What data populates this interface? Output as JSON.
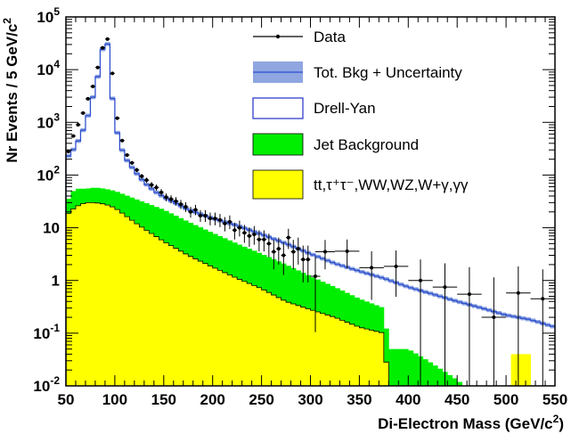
{
  "chart_data": {
    "type": "histogram",
    "xlabel": "Di-Electron Mass (GeV/c",
    "xlabel_sup": "2",
    "xlabel_close": ")",
    "ylabel": "Nr Events / 5 GeV/c",
    "ylabel_sup": "2",
    "xlim": [
      50,
      550
    ],
    "ylim": [
      0.01,
      100000
    ],
    "log_y": true,
    "bin_width": 5,
    "legend_position": "top-right",
    "x_ticks": [
      "50",
      "100",
      "150",
      "200",
      "250",
      "300",
      "350",
      "400",
      "450",
      "500",
      "550"
    ],
    "y_ticks": [
      {
        "base": "10",
        "exp": "-2"
      },
      {
        "base": "10",
        "exp": "-1"
      },
      {
        "base": "1",
        "exp": ""
      },
      {
        "base": "10",
        "exp": ""
      },
      {
        "base": "10",
        "exp": "2"
      },
      {
        "base": "10",
        "exp": "3"
      },
      {
        "base": "10",
        "exp": "4"
      },
      {
        "base": "10",
        "exp": "5"
      }
    ],
    "legend": [
      {
        "key": "data",
        "label": "Data"
      },
      {
        "key": "total",
        "label": "Tot. Bkg + Uncertainty"
      },
      {
        "key": "dy",
        "label": "Drell-Yan"
      },
      {
        "key": "jet",
        "label": "Jet Background"
      },
      {
        "key": "other",
        "label": "tt,τ⁺τ⁻,WW,WZ,W+γ,γγ"
      }
    ],
    "series": [
      {
        "name": "Tot. Bkg + Uncertainty",
        "knots": [
          [
            50,
            200
          ],
          [
            60,
            350
          ],
          [
            70,
            900
          ],
          [
            75,
            2000
          ],
          [
            80,
            4500
          ],
          [
            85,
            12000
          ],
          [
            88,
            28000
          ],
          [
            90,
            40000
          ],
          [
            92,
            40000
          ],
          [
            95,
            8000
          ],
          [
            100,
            1000
          ],
          [
            105,
            400
          ],
          [
            110,
            220
          ],
          [
            120,
            120
          ],
          [
            130,
            72
          ],
          [
            140,
            50
          ],
          [
            150,
            38
          ],
          [
            175,
            22
          ],
          [
            200,
            15
          ],
          [
            225,
            11
          ],
          [
            250,
            7.5
          ],
          [
            275,
            5
          ],
          [
            300,
            3.2
          ],
          [
            325,
            2.1
          ],
          [
            350,
            1.5
          ],
          [
            375,
            1.1
          ],
          [
            400,
            0.75
          ],
          [
            425,
            0.55
          ],
          [
            450,
            0.4
          ],
          [
            475,
            0.3
          ],
          [
            500,
            0.22
          ],
          [
            525,
            0.18
          ],
          [
            550,
            0.13
          ]
        ],
        "color": "#5573d6",
        "band_color": "#8fa6e0"
      },
      {
        "name": "Jet Background",
        "knots": [
          [
            50,
            28
          ],
          [
            55,
            45
          ],
          [
            60,
            55
          ],
          [
            70,
            55
          ],
          [
            80,
            58
          ],
          [
            90,
            55
          ],
          [
            100,
            50
          ],
          [
            125,
            33
          ],
          [
            150,
            22
          ],
          [
            175,
            13
          ],
          [
            200,
            8
          ],
          [
            225,
            5
          ],
          [
            250,
            3.2
          ],
          [
            275,
            2
          ],
          [
            300,
            1.2
          ],
          [
            325,
            0.75
          ],
          [
            350,
            0.45
          ],
          [
            375,
            0.3
          ],
          [
            380,
            0.05
          ],
          [
            400,
            0.05
          ],
          [
            420,
            0.03
          ],
          [
            450,
            0.013
          ],
          [
            460,
            0.009
          ]
        ],
        "color": "#00ee00"
      },
      {
        "name": "tt,τ⁺τ⁻,WW,WZ,W+γ,γγ",
        "knots": [
          [
            50,
            17
          ],
          [
            60,
            25
          ],
          [
            70,
            30
          ],
          [
            80,
            30
          ],
          [
            90,
            28
          ],
          [
            100,
            24
          ],
          [
            125,
            11
          ],
          [
            150,
            5.5
          ],
          [
            175,
            3
          ],
          [
            200,
            1.8
          ],
          [
            225,
            1.1
          ],
          [
            250,
            0.7
          ],
          [
            275,
            0.4
          ],
          [
            300,
            0.28
          ],
          [
            325,
            0.2
          ],
          [
            350,
            0.13
          ],
          [
            375,
            0.1
          ],
          [
            380,
            0.008
          ]
        ],
        "extra_bins": [
          [
            505,
            510,
            0.04
          ],
          [
            510,
            515,
            0.04
          ],
          [
            515,
            520,
            0.04
          ],
          [
            520,
            525,
            0.04
          ]
        ],
        "color": "#ffff00"
      },
      {
        "name": "Data",
        "points": [
          {
            "x": 52.5,
            "y": 280
          },
          {
            "x": 57.5,
            "y": 550
          },
          {
            "x": 62.5,
            "y": 900
          },
          {
            "x": 67.5,
            "y": 1500
          },
          {
            "x": 72.5,
            "y": 2800
          },
          {
            "x": 77.5,
            "y": 4800
          },
          {
            "x": 82.5,
            "y": 11000
          },
          {
            "x": 87.5,
            "y": 26000
          },
          {
            "x": 92.5,
            "y": 38000
          },
          {
            "x": 97.5,
            "y": 8500
          },
          {
            "x": 102.5,
            "y": 1200
          },
          {
            "x": 107.5,
            "y": 450
          },
          {
            "x": 112.5,
            "y": 240
          },
          {
            "x": 117.5,
            "y": 170
          },
          {
            "x": 122.5,
            "y": 125
          },
          {
            "x": 127.5,
            "y": 95
          },
          {
            "x": 132.5,
            "y": 80
          },
          {
            "x": 137.5,
            "y": 65
          },
          {
            "x": 142.5,
            "y": 58
          },
          {
            "x": 147.5,
            "y": 47
          },
          {
            "x": 152.5,
            "y": 38
          },
          {
            "x": 157.5,
            "y": 35
          },
          {
            "x": 162.5,
            "y": 32
          },
          {
            "x": 167.5,
            "y": 28
          },
          {
            "x": 172.5,
            "y": 25
          },
          {
            "x": 177.5,
            "y": 20
          },
          {
            "x": 182.5,
            "y": 22
          },
          {
            "x": 187.5,
            "y": 17
          },
          {
            "x": 192.5,
            "y": 17
          },
          {
            "x": 197.5,
            "y": 15
          },
          {
            "x": 202.5,
            "y": 15
          },
          {
            "x": 207.5,
            "y": 14
          },
          {
            "x": 212.5,
            "y": 12
          },
          {
            "x": 217.5,
            "y": 13
          },
          {
            "x": 222.5,
            "y": 9
          },
          {
            "x": 227.5,
            "y": 10
          },
          {
            "x": 232.5,
            "y": 8
          },
          {
            "x": 237.5,
            "y": 7
          },
          {
            "x": 242.5,
            "y": 7.5
          },
          {
            "x": 247.5,
            "y": 6
          },
          {
            "x": 252.5,
            "y": 6
          },
          {
            "x": 257.5,
            "y": 5
          },
          {
            "x": 262.5,
            "y": 3.5
          },
          {
            "x": 267.5,
            "y": 4
          },
          {
            "x": 272.5,
            "y": 3
          },
          {
            "x": 277.5,
            "y": 6.5
          },
          {
            "x": 282.5,
            "y": 3.5
          },
          {
            "x": 287.5,
            "y": 4
          },
          {
            "x": 292.5,
            "y": 2.5
          },
          {
            "x": 297.5,
            "y": 2.5
          },
          {
            "x": 305,
            "y": 1.2,
            "xerr": 5
          },
          {
            "x": 315,
            "y": 3.5,
            "xerr": 10
          },
          {
            "x": 337.5,
            "y": 3.6,
            "xerr": 12.5
          },
          {
            "x": 362.5,
            "y": 1.75,
            "xerr": 12.5
          },
          {
            "x": 387.5,
            "y": 1.85,
            "xerr": 12.5
          },
          {
            "x": 412.5,
            "y": 1.0,
            "xerr": 12.5
          },
          {
            "x": 437.5,
            "y": 0.75,
            "xerr": 12.5
          },
          {
            "x": 462.5,
            "y": 0.55,
            "xerr": 12.5
          },
          {
            "x": 487.5,
            "y": 0.2,
            "xerr": 12.5
          },
          {
            "x": 512.5,
            "y": 0.58,
            "xerr": 12.5
          },
          {
            "x": 537.5,
            "y": 0.45,
            "xerr": 12.5
          }
        ],
        "color": "#000000"
      }
    ]
  }
}
